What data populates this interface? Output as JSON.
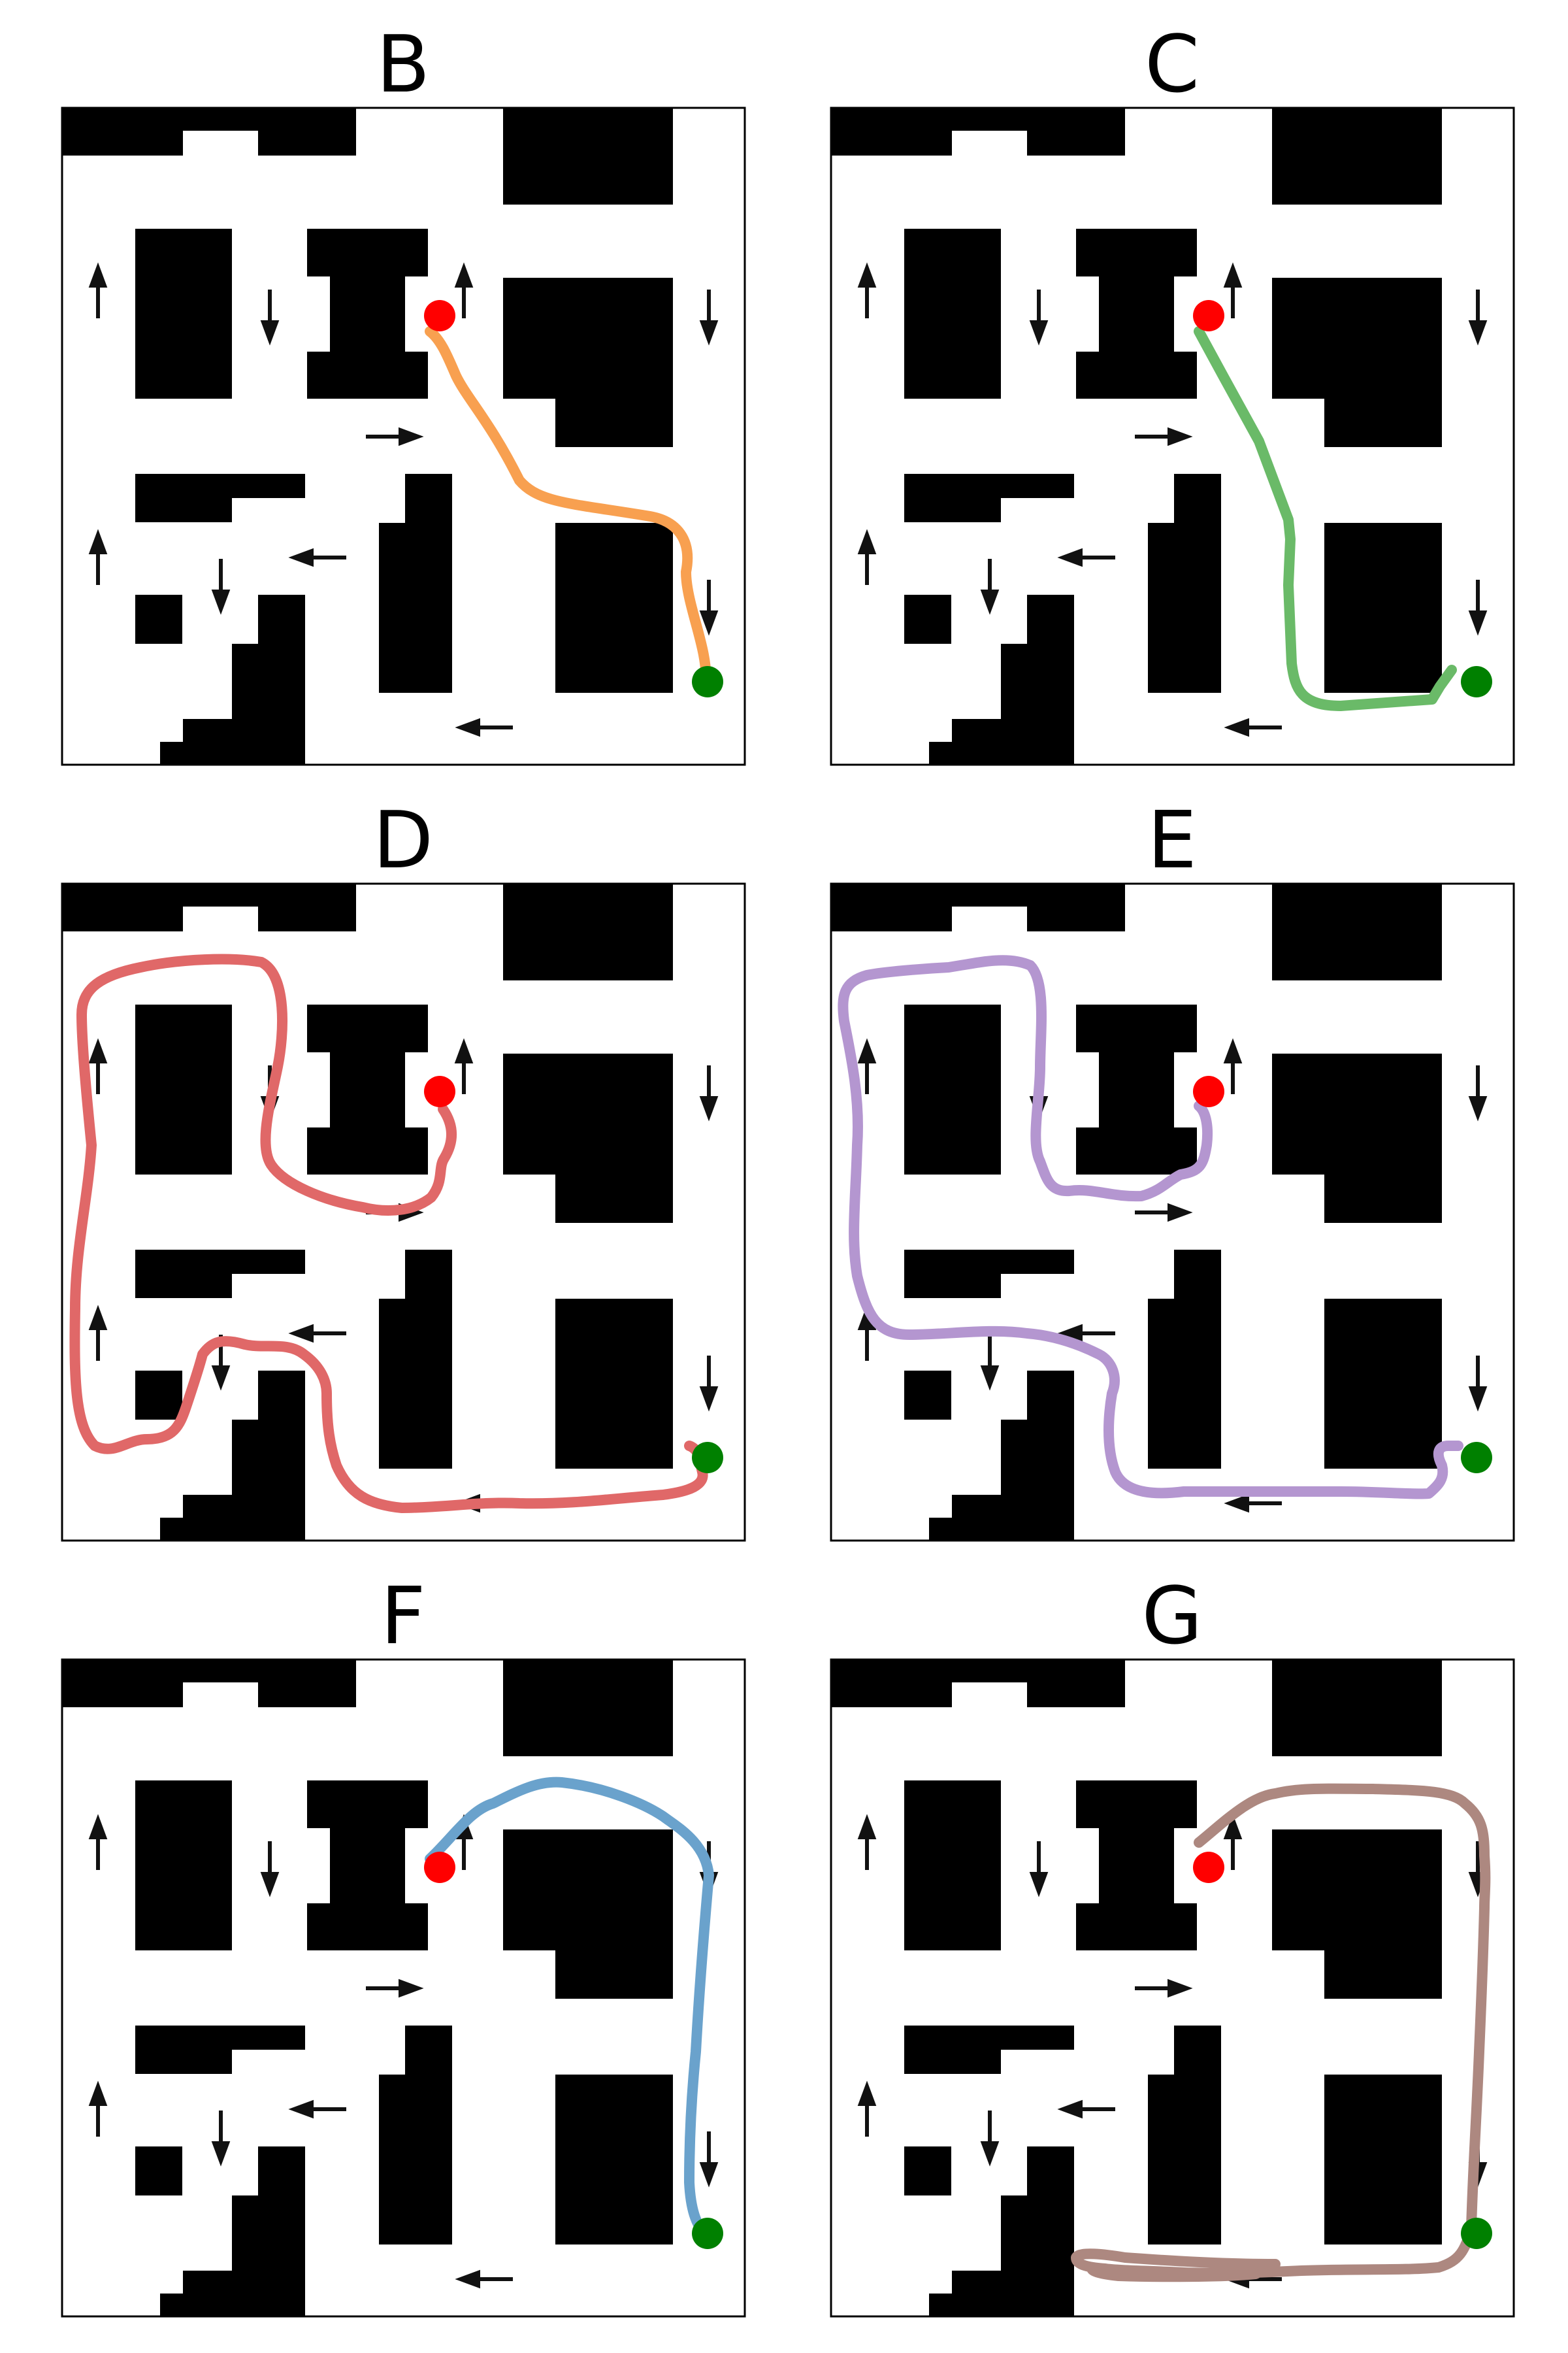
{
  "figure": {
    "panels": [
      {
        "id": "panel-b",
        "title": "B",
        "path_color": "#f8a050"
      },
      {
        "id": "panel-c",
        "title": "C",
        "path_color": "#6aba68"
      },
      {
        "id": "panel-d",
        "title": "D",
        "path_color": "#e06868"
      },
      {
        "id": "panel-e",
        "title": "E",
        "path_color": "#b496d0"
      },
      {
        "id": "panel-f",
        "title": "F",
        "path_color": "#6aa2cc"
      },
      {
        "id": "panel-g",
        "title": "G",
        "path_color": "#ad8880"
      }
    ],
    "legend_markers": {
      "start_color": "#ff0000",
      "goal_color": "#008000"
    },
    "obstacle_color": "#000000",
    "arrow_color": "#111111"
  }
}
